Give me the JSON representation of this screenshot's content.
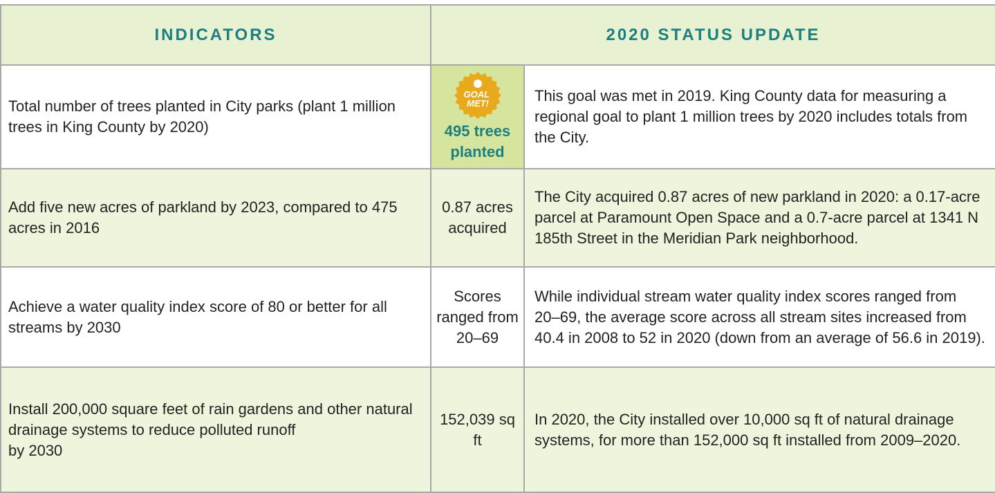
{
  "header": {
    "columns": [
      "INDICATORS",
      "2020 STATUS UPDATE"
    ]
  },
  "table": {
    "rows": [
      {
        "indicator": "Total number of trees planted in City parks (plant 1 million trees in King County by 2020)",
        "badge": "GOAL MET!",
        "status": "495 trees planted",
        "update": "This goal was met in 2019. King County data for measuring a regional goal to plant 1 million trees by 2020 includes totals from the City."
      },
      {
        "indicator": "Add five new acres of parkland by 2023, compared to 475 acres in 2016",
        "status": "0.87 acres acquired",
        "update": "The City acquired 0.87 acres of new parkland in 2020: a 0.17-acre parcel at Paramount Open Space and a 0.7-acre parcel at 1341 N 185th Street in the Meridian Park neighborhood."
      },
      {
        "indicator": "Achieve a water quality index score of 80 or better for all streams by 2030",
        "status": "Scores ranged from 20–69",
        "update": "While individual stream water quality index scores ranged from 20–69, the average score across all stream sites increased from 40.4 in 2008 to 52 in 2020 (down from an average of 56.6 in 2019)."
      },
      {
        "indicator": "Install 200,000 square feet of rain gardens and other natural drainage systems to reduce polluted runoff\nby 2030",
        "status": "152,039 sq ft",
        "update": "In 2020, the City installed over 10,000 sq ft of natural drainage systems, for more than 152,000 sq ft installed from 2009–2020."
      }
    ]
  }
}
